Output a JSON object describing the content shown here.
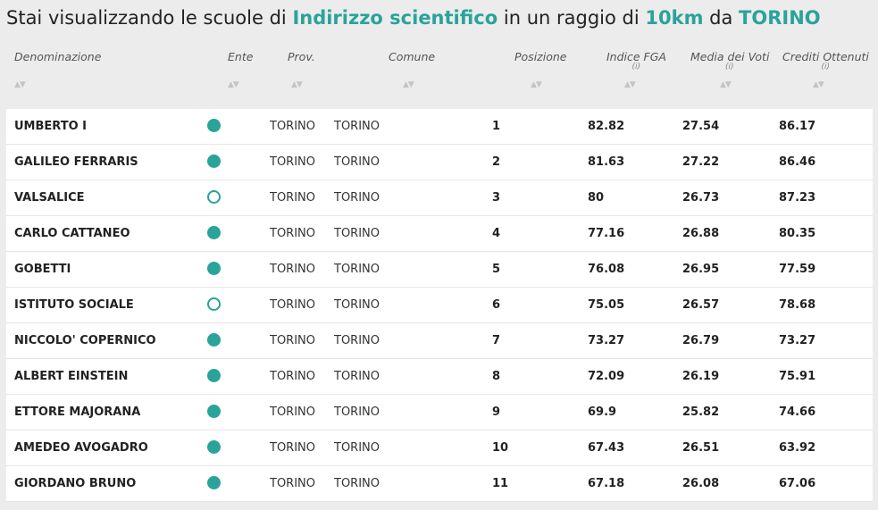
{
  "header": {
    "parts": [
      {
        "text": "Stai visualizzando le scuole di",
        "highlight": false
      },
      {
        "text": "Indirizzo scientifico",
        "highlight": true
      },
      {
        "text": "in un raggio di",
        "highlight": false
      },
      {
        "text": "10km",
        "highlight": true
      },
      {
        "text": "da",
        "highlight": false
      },
      {
        "text": "TORINO",
        "highlight": true
      }
    ]
  },
  "table": {
    "columns": [
      {
        "label": "Denominazione"
      },
      {
        "label": "Ente"
      },
      {
        "label": "Prov."
      },
      {
        "label": "Comune"
      },
      {
        "label": "Posizione"
      },
      {
        "label": "Indice FGA",
        "info": "(i)"
      },
      {
        "label": "Media dei Voti",
        "info": "(i)"
      },
      {
        "label": "Crediti Ottenuti",
        "info": "(i)"
      }
    ],
    "rows": [
      {
        "name": "UMBERTO I",
        "ente_filled": true,
        "prov": "TORINO",
        "comune": "TORINO",
        "posizione": 1,
        "fga": 82.82,
        "media": 27.54,
        "crediti": 86.17
      },
      {
        "name": "GALILEO FERRARIS",
        "ente_filled": true,
        "prov": "TORINO",
        "comune": "TORINO",
        "posizione": 2,
        "fga": 81.63,
        "media": 27.22,
        "crediti": 86.46
      },
      {
        "name": "VALSALICE",
        "ente_filled": false,
        "prov": "TORINO",
        "comune": "TORINO",
        "posizione": 3,
        "fga": 80,
        "media": 26.73,
        "crediti": 87.23
      },
      {
        "name": "CARLO CATTANEO",
        "ente_filled": true,
        "prov": "TORINO",
        "comune": "TORINO",
        "posizione": 4,
        "fga": 77.16,
        "media": 26.88,
        "crediti": 80.35
      },
      {
        "name": "GOBETTI",
        "ente_filled": true,
        "prov": "TORINO",
        "comune": "TORINO",
        "posizione": 5,
        "fga": 76.08,
        "media": 26.95,
        "crediti": 77.59
      },
      {
        "name": "ISTITUTO SOCIALE",
        "ente_filled": false,
        "prov": "TORINO",
        "comune": "TORINO",
        "posizione": 6,
        "fga": 75.05,
        "media": 26.57,
        "crediti": 78.68
      },
      {
        "name": "NICCOLO' COPERNICO",
        "ente_filled": true,
        "prov": "TORINO",
        "comune": "TORINO",
        "posizione": 7,
        "fga": 73.27,
        "media": 26.79,
        "crediti": 73.27
      },
      {
        "name": "ALBERT EINSTEIN",
        "ente_filled": true,
        "prov": "TORINO",
        "comune": "TORINO",
        "posizione": 8,
        "fga": 72.09,
        "media": 26.19,
        "crediti": 75.91
      },
      {
        "name": "ETTORE MAJORANA",
        "ente_filled": true,
        "prov": "TORINO",
        "comune": "TORINO",
        "posizione": 9,
        "fga": 69.9,
        "media": 25.82,
        "crediti": 74.66
      },
      {
        "name": "AMEDEO AVOGADRO",
        "ente_filled": true,
        "prov": "TORINO",
        "comune": "TORINO",
        "posizione": 10,
        "fga": 67.43,
        "media": 26.51,
        "crediti": 63.92
      },
      {
        "name": "GIORDANO BRUNO",
        "ente_filled": true,
        "prov": "TORINO",
        "comune": "TORINO",
        "posizione": 11,
        "fga": 67.18,
        "media": 26.08,
        "crediti": 67.06
      }
    ]
  }
}
